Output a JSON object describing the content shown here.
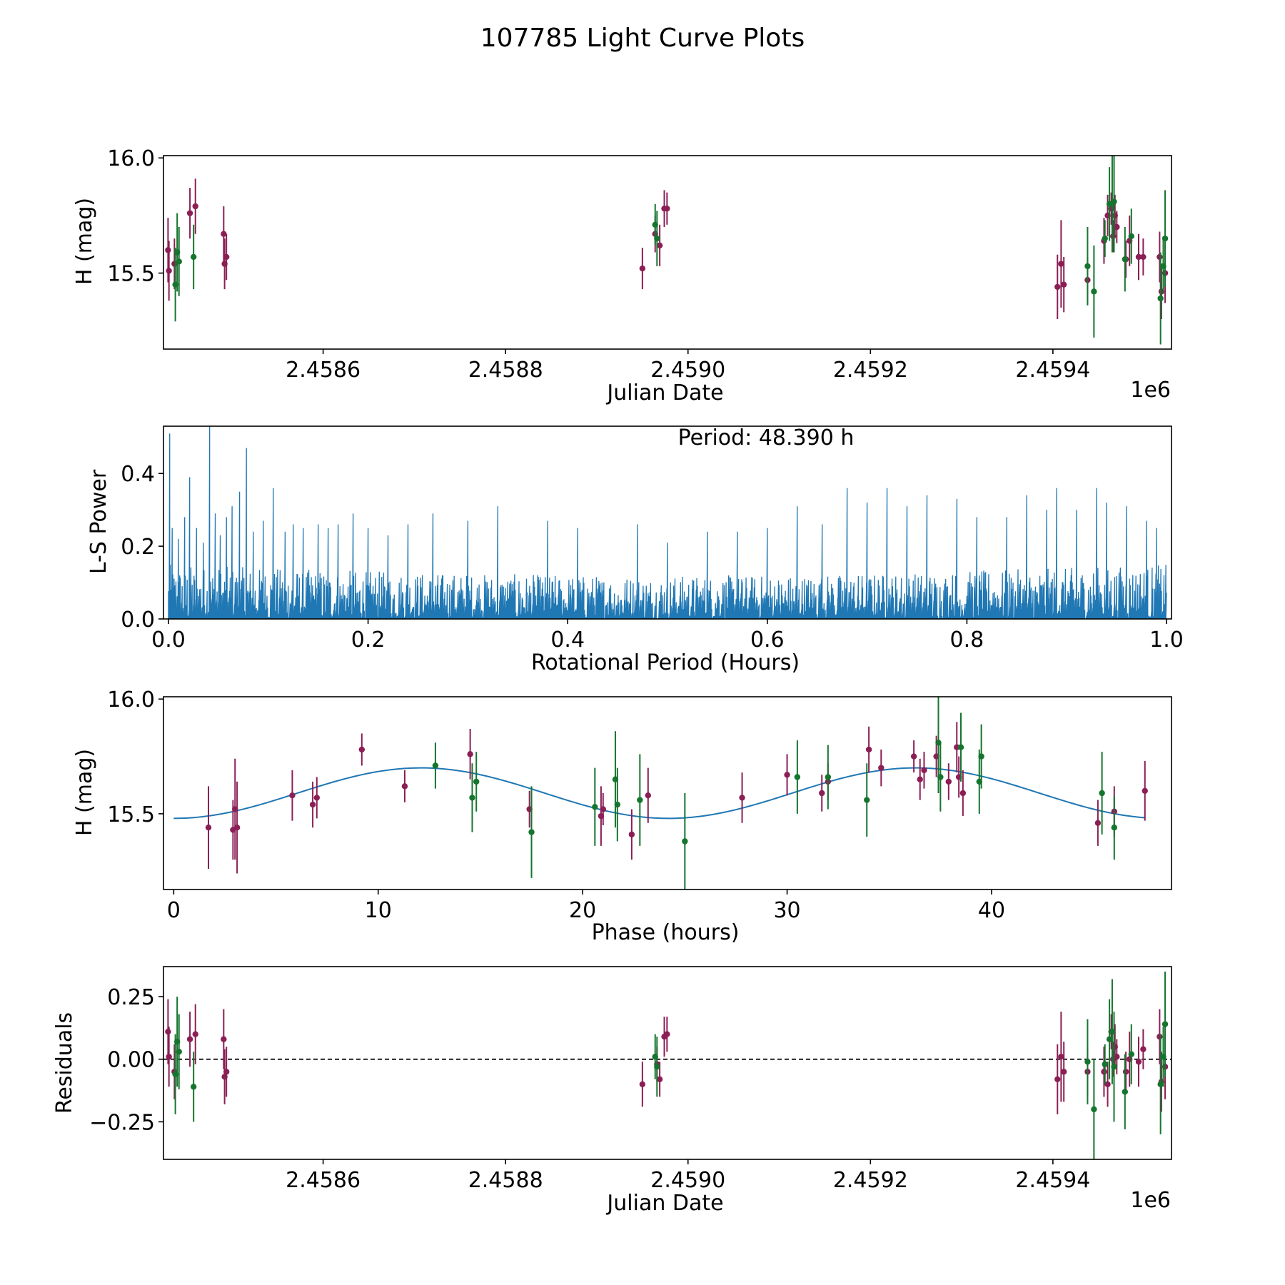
{
  "figure": {
    "title": "107785 Light Curve Plots",
    "colors": {
      "red": "#8b1f55",
      "green": "#15752e",
      "blue": "#1f77b4",
      "axis": "#000000"
    }
  },
  "chart_data": [
    {
      "id": "lightcurve",
      "type": "scatter",
      "title": "",
      "xlabel": "Julian Date",
      "ylabel": "H (mag)",
      "offset_label": "1e6",
      "xlim": [
        2458425,
        2459530
      ],
      "ylim": [
        15.17,
        16.01
      ],
      "xticks": [
        2458600,
        2458800,
        2459000,
        2459200,
        2459400
      ],
      "xtick_labels": [
        "2.4586",
        "2.4588",
        "2.4590",
        "2.4592",
        "2.4594"
      ],
      "yticks": [
        15.5,
        16.0
      ],
      "ytick_labels": [
        "15.5",
        "16.0"
      ],
      "legend": "none",
      "series": [
        {
          "name": "red",
          "color": "red",
          "points": [
            [
              2458430,
              15.6,
              0.14
            ],
            [
              2458431,
              15.51,
              0.13
            ],
            [
              2458437,
              15.54,
              0.11
            ],
            [
              2458454,
              15.76,
              0.11
            ],
            [
              2458460,
              15.79,
              0.12
            ],
            [
              2458491,
              15.67,
              0.12
            ],
            [
              2458492,
              15.54,
              0.11
            ],
            [
              2458494,
              15.57,
              0.1
            ],
            [
              2458950,
              15.52,
              0.09
            ],
            [
              2458964,
              15.67,
              0.08
            ],
            [
              2458969,
              15.62,
              0.09
            ],
            [
              2458974,
              15.78,
              0.08
            ],
            [
              2458977,
              15.78,
              0.07
            ],
            [
              2459405,
              15.44,
              0.14
            ],
            [
              2459409,
              15.54,
              0.19
            ],
            [
              2459412,
              15.45,
              0.12
            ],
            [
              2459438,
              15.47,
              0.1
            ],
            [
              2459456,
              15.64,
              0.1
            ],
            [
              2459460,
              15.75,
              0.09
            ],
            [
              2459464,
              15.78,
              0.07
            ],
            [
              2459466,
              15.66,
              0.07
            ],
            [
              2459468,
              15.75,
              0.09
            ],
            [
              2459470,
              15.7,
              0.07
            ],
            [
              2459480,
              15.56,
              0.08
            ],
            [
              2459484,
              15.64,
              0.11
            ],
            [
              2459494,
              15.57,
              0.1
            ],
            [
              2459499,
              15.57,
              0.08
            ],
            [
              2459517,
              15.57,
              0.11
            ],
            [
              2459519,
              15.42,
              0.12
            ],
            [
              2459523,
              15.5,
              0.13
            ]
          ]
        },
        {
          "name": "green",
          "color": "green",
          "points": [
            [
              2458438,
              15.45,
              0.16
            ],
            [
              2458440,
              15.59,
              0.17
            ],
            [
              2458442,
              15.55,
              0.15
            ],
            [
              2458458,
              15.57,
              0.14
            ],
            [
              2458964,
              15.71,
              0.09
            ],
            [
              2458966,
              15.65,
              0.12
            ],
            [
              2459438,
              15.53,
              0.17
            ],
            [
              2459445,
              15.42,
              0.2
            ],
            [
              2459457,
              15.65,
              0.08
            ],
            [
              2459462,
              15.8,
              0.16
            ],
            [
              2459465,
              15.8,
              0.21
            ],
            [
              2459467,
              15.81,
              0.22
            ],
            [
              2459479,
              15.56,
              0.14
            ],
            [
              2459486,
              15.66,
              0.12
            ],
            [
              2459518,
              15.39,
              0.2
            ],
            [
              2459521,
              15.53,
              0.12
            ],
            [
              2459523,
              15.65,
              0.21
            ]
          ]
        }
      ]
    },
    {
      "id": "periodogram",
      "type": "line",
      "title": "",
      "annotation": "Period: 48.390 h",
      "xlabel": "Rotational Period (Hours)",
      "ylabel": "L-S Power",
      "xlim": [
        -0.005,
        1.005
      ],
      "ylim": [
        0,
        0.53
      ],
      "xticks": [
        0.0,
        0.2,
        0.4,
        0.6,
        0.8,
        1.0
      ],
      "xtick_labels": [
        "0.0",
        "0.2",
        "0.4",
        "0.6",
        "0.8",
        "1.0"
      ],
      "yticks": [
        0.0,
        0.2,
        0.4
      ],
      "ytick_labels": [
        "0.0",
        "0.2",
        "0.4"
      ],
      "legend": "none",
      "x_range": [
        0.0,
        1.0
      ],
      "sample_count": 1600,
      "baseline_envelope": [
        0.15,
        0.12
      ],
      "peaks": [
        [
          0.001,
          0.51
        ],
        [
          0.004,
          0.25
        ],
        [
          0.01,
          0.22
        ],
        [
          0.016,
          0.28
        ],
        [
          0.021,
          0.39
        ],
        [
          0.028,
          0.25
        ],
        [
          0.035,
          0.21
        ],
        [
          0.041,
          0.53
        ],
        [
          0.047,
          0.29
        ],
        [
          0.052,
          0.23
        ],
        [
          0.058,
          0.28
        ],
        [
          0.064,
          0.31
        ],
        [
          0.071,
          0.35
        ],
        [
          0.078,
          0.47
        ],
        [
          0.085,
          0.24
        ],
        [
          0.095,
          0.27
        ],
        [
          0.105,
          0.36
        ],
        [
          0.117,
          0.24
        ],
        [
          0.125,
          0.26
        ],
        [
          0.135,
          0.25
        ],
        [
          0.15,
          0.26
        ],
        [
          0.16,
          0.25
        ],
        [
          0.17,
          0.26
        ],
        [
          0.185,
          0.29
        ],
        [
          0.2,
          0.25
        ],
        [
          0.22,
          0.23
        ],
        [
          0.24,
          0.26
        ],
        [
          0.265,
          0.29
        ],
        [
          0.3,
          0.27
        ],
        [
          0.33,
          0.31
        ],
        [
          0.38,
          0.27
        ],
        [
          0.41,
          0.25
        ],
        [
          0.47,
          0.26
        ],
        [
          0.5,
          0.21
        ],
        [
          0.54,
          0.24
        ],
        [
          0.57,
          0.24
        ],
        [
          0.6,
          0.25
        ],
        [
          0.63,
          0.31
        ],
        [
          0.655,
          0.26
        ],
        [
          0.68,
          0.36
        ],
        [
          0.7,
          0.32
        ],
        [
          0.72,
          0.36
        ],
        [
          0.74,
          0.31
        ],
        [
          0.76,
          0.34
        ],
        [
          0.79,
          0.33
        ],
        [
          0.81,
          0.28
        ],
        [
          0.84,
          0.28
        ],
        [
          0.86,
          0.34
        ],
        [
          0.88,
          0.3
        ],
        [
          0.89,
          0.36
        ],
        [
          0.91,
          0.3
        ],
        [
          0.93,
          0.36
        ],
        [
          0.94,
          0.32
        ],
        [
          0.96,
          0.31
        ],
        [
          0.98,
          0.27
        ],
        [
          0.99,
          0.25
        ]
      ]
    },
    {
      "id": "phased",
      "type": "scatter",
      "title": "",
      "xlabel": "Phase (hours)",
      "ylabel": "H (mag)",
      "xlim": [
        -0.5,
        48.8
      ],
      "ylim": [
        15.17,
        16.01
      ],
      "xticks": [
        0,
        10,
        20,
        30,
        40
      ],
      "xtick_labels": [
        "0",
        "10",
        "20",
        "30",
        "40"
      ],
      "yticks": [
        15.5,
        16.0
      ],
      "ytick_labels": [
        "15.5",
        "16.0"
      ],
      "legend": "none",
      "fit": {
        "mean": 15.59,
        "amplitude": 0.11,
        "period": 24.195,
        "phase_of_min": 0.0,
        "x_range": [
          0,
          47.5
        ],
        "color": "blue"
      },
      "series": [
        {
          "name": "red",
          "color": "red",
          "points": [
            [
              1.7,
              15.44,
              0.18
            ],
            [
              2.9,
              15.43,
              0.13
            ],
            [
              3.0,
              15.52,
              0.22
            ],
            [
              3.1,
              15.44,
              0.2
            ],
            [
              5.8,
              15.58,
              0.11
            ],
            [
              6.8,
              15.54,
              0.1
            ],
            [
              7.0,
              15.57,
              0.09
            ],
            [
              9.2,
              15.78,
              0.07
            ],
            [
              11.3,
              15.62,
              0.07
            ],
            [
              14.5,
              15.76,
              0.11
            ],
            [
              17.4,
              15.52,
              0.08
            ],
            [
              20.9,
              15.49,
              0.13
            ],
            [
              21.0,
              15.52,
              0.07
            ],
            [
              22.4,
              15.41,
              0.11
            ],
            [
              23.2,
              15.58,
              0.12
            ],
            [
              27.8,
              15.57,
              0.11
            ],
            [
              30.0,
              15.67,
              0.09
            ],
            [
              31.7,
              15.59,
              0.08
            ],
            [
              32.0,
              15.64,
              0.08
            ],
            [
              34.0,
              15.78,
              0.1
            ],
            [
              34.6,
              15.7,
              0.08
            ],
            [
              36.2,
              15.75,
              0.07
            ],
            [
              36.5,
              15.65,
              0.09
            ],
            [
              36.7,
              15.69,
              0.08
            ],
            [
              37.3,
              15.75,
              0.09
            ],
            [
              37.9,
              15.64,
              0.08
            ],
            [
              38.3,
              15.79,
              0.11
            ],
            [
              38.4,
              15.66,
              0.09
            ],
            [
              38.6,
              15.59,
              0.1
            ],
            [
              45.2,
              15.46,
              0.1
            ],
            [
              46.0,
              15.51,
              0.11
            ],
            [
              47.5,
              15.6,
              0.13
            ]
          ]
        },
        {
          "name": "green",
          "color": "green",
          "points": [
            [
              12.8,
              15.71,
              0.1
            ],
            [
              14.6,
              15.57,
              0.15
            ],
            [
              14.8,
              15.64,
              0.13
            ],
            [
              17.5,
              15.42,
              0.2
            ],
            [
              20.6,
              15.53,
              0.17
            ],
            [
              21.6,
              15.65,
              0.21
            ],
            [
              21.7,
              15.54,
              0.16
            ],
            [
              22.8,
              15.56,
              0.2
            ],
            [
              25.0,
              15.38,
              0.21
            ],
            [
              30.5,
              15.66,
              0.16
            ],
            [
              32.0,
              15.66,
              0.14
            ],
            [
              33.9,
              15.56,
              0.16
            ],
            [
              37.4,
              15.81,
              0.22
            ],
            [
              37.5,
              15.66,
              0.15
            ],
            [
              38.5,
              15.79,
              0.15
            ],
            [
              39.4,
              15.64,
              0.14
            ],
            [
              39.5,
              15.75,
              0.14
            ],
            [
              45.4,
              15.59,
              0.18
            ],
            [
              46.0,
              15.44,
              0.14
            ]
          ]
        }
      ]
    },
    {
      "id": "residuals",
      "type": "scatter",
      "title": "",
      "xlabel": "Julian Date",
      "ylabel": "Residuals",
      "offset_label": "1e6",
      "xlim": [
        2458425,
        2459530
      ],
      "ylim": [
        -0.4,
        0.37
      ],
      "xticks": [
        2458600,
        2458800,
        2459000,
        2459200,
        2459400
      ],
      "xtick_labels": [
        "2.4586",
        "2.4588",
        "2.4590",
        "2.4592",
        "2.4594"
      ],
      "yticks": [
        -0.25,
        0.0,
        0.25
      ],
      "ytick_labels": [
        "−0.25",
        "0.00",
        "0.25"
      ],
      "reference_line": 0,
      "legend": "none",
      "series": [
        {
          "name": "red",
          "color": "red",
          "points": [
            [
              2458430,
              0.11,
              0.13
            ],
            [
              2458431,
              0.01,
              0.12
            ],
            [
              2458437,
              -0.05,
              0.11
            ],
            [
              2458454,
              0.08,
              0.11
            ],
            [
              2458460,
              0.1,
              0.12
            ],
            [
              2458491,
              0.08,
              0.12
            ],
            [
              2458492,
              -0.07,
              0.11
            ],
            [
              2458494,
              -0.05,
              0.1
            ],
            [
              2458950,
              -0.1,
              0.09
            ],
            [
              2458966,
              -0.02,
              0.07
            ],
            [
              2458969,
              -0.08,
              0.07
            ],
            [
              2458974,
              0.09,
              0.08
            ],
            [
              2458977,
              0.1,
              0.07
            ],
            [
              2459405,
              -0.08,
              0.14
            ],
            [
              2459409,
              0.01,
              0.18
            ],
            [
              2459412,
              -0.05,
              0.12
            ],
            [
              2459438,
              -0.05,
              0.1
            ],
            [
              2459456,
              -0.05,
              0.1
            ],
            [
              2459460,
              -0.1,
              0.09
            ],
            [
              2459464,
              0.11,
              0.07
            ],
            [
              2459466,
              0.0,
              0.07
            ],
            [
              2459468,
              0.05,
              0.09
            ],
            [
              2459470,
              0.01,
              0.07
            ],
            [
              2459480,
              -0.05,
              0.08
            ],
            [
              2459484,
              0.0,
              0.11
            ],
            [
              2459494,
              -0.01,
              0.1
            ],
            [
              2459499,
              0.04,
              0.08
            ],
            [
              2459517,
              0.09,
              0.11
            ],
            [
              2459519,
              -0.09,
              0.12
            ],
            [
              2459523,
              -0.03,
              0.13
            ]
          ]
        },
        {
          "name": "green",
          "color": "green",
          "points": [
            [
              2458438,
              -0.06,
              0.16
            ],
            [
              2458440,
              0.07,
              0.18
            ],
            [
              2458442,
              0.03,
              0.15
            ],
            [
              2458458,
              -0.11,
              0.14
            ],
            [
              2458964,
              0.01,
              0.09
            ],
            [
              2458966,
              -0.03,
              0.12
            ],
            [
              2459438,
              -0.01,
              0.17
            ],
            [
              2459445,
              -0.2,
              0.2
            ],
            [
              2459457,
              -0.02,
              0.08
            ],
            [
              2459462,
              0.08,
              0.16
            ],
            [
              2459465,
              0.11,
              0.21
            ],
            [
              2459467,
              -0.03,
              0.22
            ],
            [
              2459479,
              -0.13,
              0.15
            ],
            [
              2459486,
              0.02,
              0.12
            ],
            [
              2459518,
              -0.1,
              0.2
            ],
            [
              2459521,
              0.01,
              0.12
            ],
            [
              2459523,
              0.14,
              0.21
            ]
          ]
        }
      ]
    }
  ]
}
